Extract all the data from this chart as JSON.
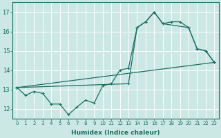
{
  "xlabel": "Humidex (Indice chaleur)",
  "xlim": [
    -0.5,
    23.5
  ],
  "ylim": [
    11.5,
    17.5
  ],
  "yticks": [
    12,
    13,
    14,
    15,
    16,
    17
  ],
  "xticks": [
    0,
    1,
    2,
    3,
    4,
    5,
    6,
    7,
    8,
    9,
    10,
    11,
    12,
    13,
    14,
    15,
    16,
    17,
    18,
    19,
    20,
    21,
    22,
    23
  ],
  "bg_color": "#cce8e4",
  "line_color": "#1a6e62",
  "grid_color": "#ffffff",
  "line1_x": [
    0,
    1,
    2,
    3,
    4,
    5,
    6,
    7,
    8,
    9,
    10,
    11,
    12,
    13,
    14,
    15,
    16,
    17,
    18,
    19,
    20,
    21,
    22,
    23
  ],
  "line1_y": [
    13.1,
    12.7,
    12.9,
    12.8,
    12.25,
    12.25,
    11.7,
    12.1,
    12.45,
    12.3,
    13.2,
    13.3,
    14.0,
    14.1,
    16.2,
    16.5,
    17.0,
    16.4,
    16.5,
    16.5,
    16.2,
    15.1,
    15.0,
    14.4
  ],
  "line2_x": [
    0,
    23
  ],
  "line2_y": [
    13.1,
    14.4
  ],
  "line3_x": [
    0,
    13,
    14,
    15,
    16,
    17,
    20,
    21,
    22,
    23
  ],
  "line3_y": [
    13.1,
    13.3,
    16.2,
    16.5,
    17.0,
    16.4,
    16.2,
    15.1,
    15.0,
    14.4
  ]
}
